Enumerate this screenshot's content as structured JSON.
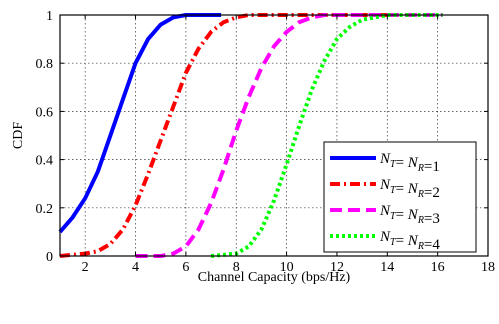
{
  "chart_data": {
    "type": "line",
    "title": "",
    "xlabel": "Channel Capacity (bps/Hz)",
    "ylabel": "CDF",
    "xlim": [
      1,
      18
    ],
    "ylim": [
      0,
      1
    ],
    "xticks": [
      2,
      4,
      6,
      8,
      10,
      12,
      14,
      16,
      18
    ],
    "yticks": [
      0,
      0.2,
      0.4,
      0.6,
      0.8,
      1
    ],
    "xtick_labels": [
      "2",
      "4",
      "6",
      "8",
      "10",
      "12",
      "14",
      "16",
      "18"
    ],
    "ytick_labels": [
      "0",
      "0.2",
      "0.4",
      "0.6",
      "0.8",
      "1"
    ],
    "grid": true,
    "legend_position": "bottom-right",
    "series": [
      {
        "label": {
          "pre": "N",
          "sub1": "T",
          "mid": "= N",
          "sub2": "R",
          "post": "=1"
        },
        "color": "#0000ff",
        "dash": "solid",
        "x": [
          1.0,
          1.5,
          2.0,
          2.5,
          3.0,
          3.5,
          4.0,
          4.5,
          5.0,
          5.5,
          6.0,
          6.5,
          7.0,
          7.4
        ],
        "y": [
          0.1,
          0.16,
          0.24,
          0.35,
          0.5,
          0.65,
          0.8,
          0.9,
          0.96,
          0.99,
          1.0,
          1.0,
          1.0,
          1.0
        ]
      },
      {
        "label": {
          "pre": "N",
          "sub1": "T",
          "mid": "= N",
          "sub2": "R",
          "post": "=2"
        },
        "color": "#ff0000",
        "dash": "dashdot",
        "x": [
          1.0,
          2.0,
          2.5,
          3.0,
          3.5,
          4.0,
          4.5,
          5.0,
          5.5,
          6.0,
          6.5,
          7.0,
          7.5,
          8.0,
          8.5,
          9.0,
          9.5,
          10.0,
          14.0
        ],
        "y": [
          0.0,
          0.01,
          0.02,
          0.05,
          0.11,
          0.21,
          0.34,
          0.48,
          0.62,
          0.76,
          0.86,
          0.93,
          0.97,
          0.99,
          1.0,
          1.0,
          1.0,
          1.0,
          1.0
        ]
      },
      {
        "label": {
          "pre": "N",
          "sub1": "T",
          "mid": "= N",
          "sub2": "R",
          "post": "=3"
        },
        "color": "#ff00ff",
        "dash": "dash",
        "x": [
          4.0,
          5.0,
          5.5,
          6.0,
          6.5,
          7.0,
          7.5,
          8.0,
          8.5,
          9.0,
          9.5,
          10.0,
          10.5,
          11.0,
          11.5,
          12.0,
          13.0,
          14.0,
          16.2
        ],
        "y": [
          0.0,
          0.0,
          0.01,
          0.04,
          0.11,
          0.22,
          0.36,
          0.52,
          0.66,
          0.78,
          0.87,
          0.93,
          0.97,
          0.99,
          1.0,
          1.0,
          1.0,
          1.0,
          1.0
        ]
      },
      {
        "label": {
          "pre": "N",
          "sub1": "T",
          "mid": "= N",
          "sub2": "R",
          "post": "=4"
        },
        "color": "#00ff00",
        "dash": "dot",
        "x": [
          7.0,
          8.0,
          8.5,
          9.0,
          9.5,
          10.0,
          10.5,
          11.0,
          11.5,
          12.0,
          12.5,
          13.0,
          13.5,
          14.0,
          15.0,
          16.2
        ],
        "y": [
          0.0,
          0.01,
          0.04,
          0.11,
          0.23,
          0.38,
          0.54,
          0.69,
          0.81,
          0.9,
          0.95,
          0.98,
          0.99,
          1.0,
          1.0,
          1.0
        ]
      }
    ]
  }
}
